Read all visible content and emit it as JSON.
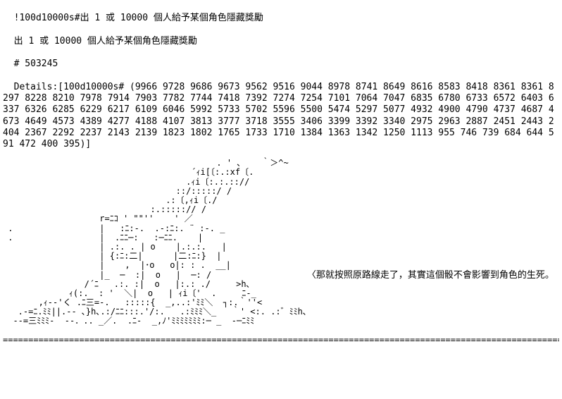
{
  "header": {
    "line1": "!100d10000s#出 1 或 10000 個人給予某個角色隱藏獎勵",
    "line2": "出 1 或 10000 個人給予某個角色隱藏獎勵",
    "line3": "# 503245",
    "details_prefix": "Details:[100d10000s# (",
    "details_numbers": "9966 9728 9686 9673 9562 9516 9044 8978 8741 8649 8616 8583 8418 8361 8361 8297 8228 8210 7978 7914 7903 7782 7744 7418 7392 7274 7254 7101 7064 7047 6835 6780 6733 6572 6403 6337 6326 6285 6229 6217 6109 6046 5992 5733 5702 5596 5500 5474 5297 5077 4932 4900 4790 4737 4687 4673 4649 4573 4389 4277 4188 4107 3813 3777 3718 3555 3406 3399 3392 3340 2975 2963 2887 2451 2443 2404 2367 2292 2237 2143 2139 1823 1802 1765 1733 1710 1384 1363 1342 1250 1113 955 746 739 684 644 591 472 400 395",
    "details_suffix": ")]"
  },
  "caption": "〈那就按照原路線走了，其實這個骰不會影響到角色的生死。",
  "divider": "================================================================================================================================",
  "ascii_art": "                                          . ' ､    ｀＞^~\n                                     ´ｨi[〔:.:xf〔.\n                                    .ｨi〔:.:.:://\n                                  ::/:::::/ /\n                                .:〔,ｨi〔./\n                             :.:::::// /\n                   r=ﾆｺ ' \"\"''    ' ／\n .                 |   :ﾆ:-.  .-:ﾆ:. ¨ :-. _\n .                 |  .ﾆﾆ─:   :─ﾆﾆ.    |\n                   | .:. . | o    |.:.:.   |\n                   | {:ﾆ:二|      |二:ﾆ:}  |\n                   |    ,  |･o   o|: : .  __|\n                   |_  ─  :|  o   |  ─: /\n                /´ﾆ   .:. :|  o   |:.: ./     >h､\n             ｨ(:.  : '  ＼|  o   | ｨi〔'  .     ﾆ-_\n       ,ｨ-‐'く .ﾆ三=-.   :::::{  _,..:'ﾐﾐ＼  ┐:.｀''<\n   .-=ﾆ.ﾐﾐ||.-- ､}h､.:/ﾆﾆ:::.'/:.   .:ﾐﾐﾐ＼_   ｀' <:. .:゛ﾐﾐh､\n  --=三ﾐﾐﾐ-  --．.. _／.  .ﾆ-  _,ﾉ'ﾐﾐﾐﾐﾐﾐﾐ:─ _  -─ﾆﾐﾐ\n",
  "style": {
    "bg": "#ffffff",
    "fg": "#000000",
    "font_size_body": 13,
    "font_size_art": 12
  }
}
